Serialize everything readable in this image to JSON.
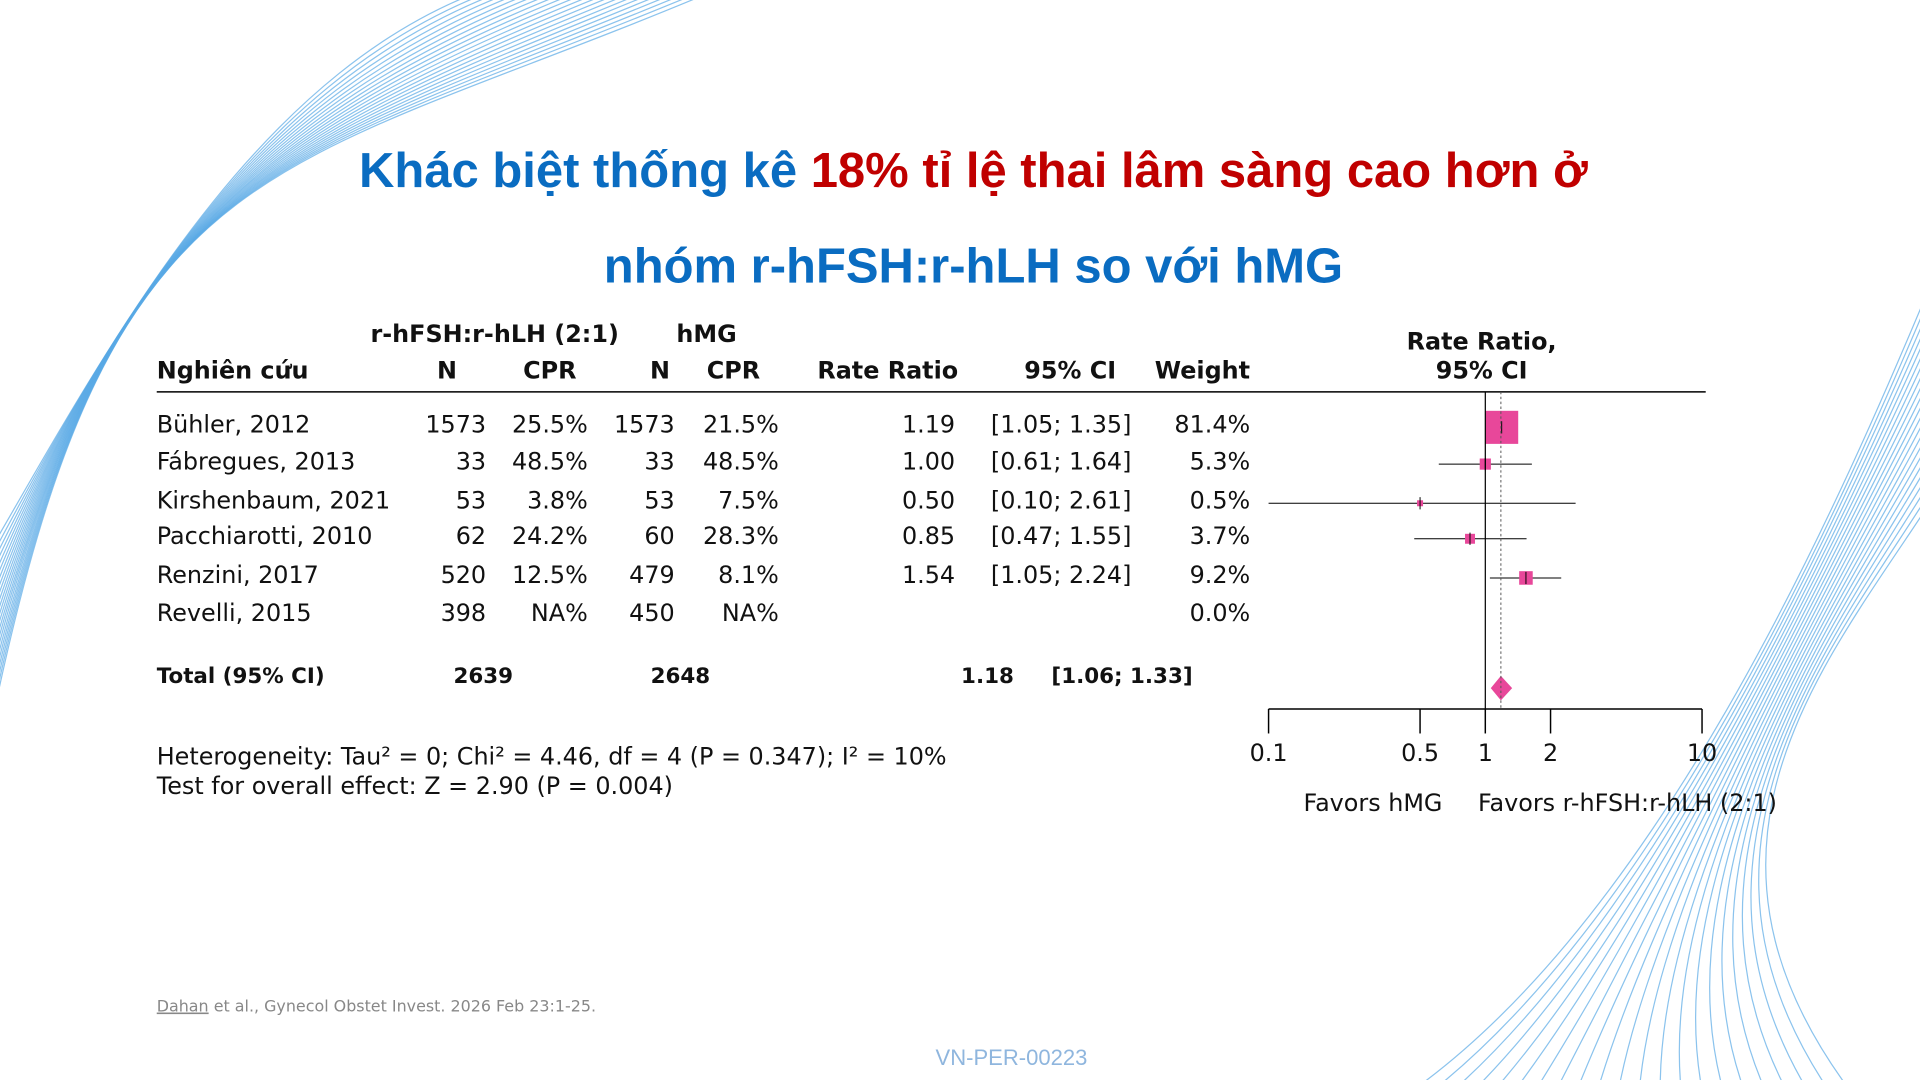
{
  "title_lines": [
    [
      {
        "text": "Khác biệt thống kê ",
        "color": "#0a6cc1"
      },
      {
        "text": "18% tỉ lệ thai lâm sàng cao hơn ở",
        "color": "#c00000"
      }
    ],
    [
      {
        "text": "nhóm r-hFSH:r-hLH so với hMG",
        "color": "#0a6cc1"
      }
    ]
  ],
  "chart_data": {
    "type": "forest",
    "group_headers": [
      "r-hFSH:r-hLH (2:1)",
      "hMG"
    ],
    "columns": [
      "Nghiên cứu",
      "N",
      "CPR",
      "N",
      "CPR",
      "Rate Ratio",
      "95% CI",
      "Weight"
    ],
    "plot_header": [
      "Rate Ratio,",
      "95% CI"
    ],
    "rows": [
      [
        "Bühler, 2012",
        "1573",
        "25.5%",
        "1573",
        "21.5%"
      ],
      [
        "Fábregues, 2013",
        "33",
        "48.5%",
        "33",
        "48.5%"
      ],
      [
        "Kirshenbaum, 2021",
        "53",
        "3.8%",
        "53",
        "7.5%"
      ],
      [
        "Pacchiarotti, 2010",
        "62",
        "24.2%",
        "60",
        "28.3%"
      ],
      [
        "Renzini, 2017",
        "520",
        "12.5%",
        "479",
        "8.1%"
      ],
      [
        "Revelli, 2015",
        "398",
        "NA%",
        "450",
        "NA%"
      ]
    ],
    "values": [
      1.19,
      1.0,
      0.5,
      0.85,
      1.54,
      null
    ],
    "value_labels": [
      "1.19",
      "1.00",
      "0.50",
      "0.85",
      "1.54",
      null
    ],
    "ci_low": [
      1.05,
      0.61,
      0.1,
      0.47,
      1.05,
      null
    ],
    "ci_high": [
      1.35,
      1.64,
      2.61,
      1.55,
      2.24,
      null
    ],
    "ci_labels": [
      "[1.05; 1.35]",
      "[0.61; 1.64]",
      "[0.10; 2.61]",
      "[0.47; 1.55]",
      "[1.05; 2.24]",
      null
    ],
    "weights": [
      81.4,
      5.3,
      0.5,
      3.7,
      9.2,
      0.0
    ],
    "weight_labels": [
      "81.4%",
      "5.3%",
      "0.5%",
      "3.7%",
      "9.2%",
      "0.0%"
    ],
    "total": {
      "label": "Total (95% CI)",
      "n1": "2639",
      "n2": "2648",
      "value": 1.18,
      "value_label": "1.18",
      "ci_low": 1.06,
      "ci_high": 1.33,
      "ci_label": "[1.06; 1.33]"
    },
    "stats": [
      "Heterogeneity: Tau² = 0; Chi² = 4.46, df = 4 (P = 0.347); I² = 10%",
      "Test for overall effect: Z = 2.90 (P = 0.004)"
    ],
    "log_scale": true,
    "xlim": [
      0.1,
      10
    ],
    "xticks": [
      0.1,
      0.5,
      1,
      2,
      10
    ],
    "reference": 1,
    "favors": [
      "Favors hMG",
      "Favors r-hFSH:r-hLH (2:1)"
    ],
    "color": "#e8479a"
  },
  "footnote": {
    "author": "Dahan",
    "rest": " et al., Gynecol Obstet Invest. 2026 Feb 23:1-25."
  },
  "code": "VN-PER-00223"
}
